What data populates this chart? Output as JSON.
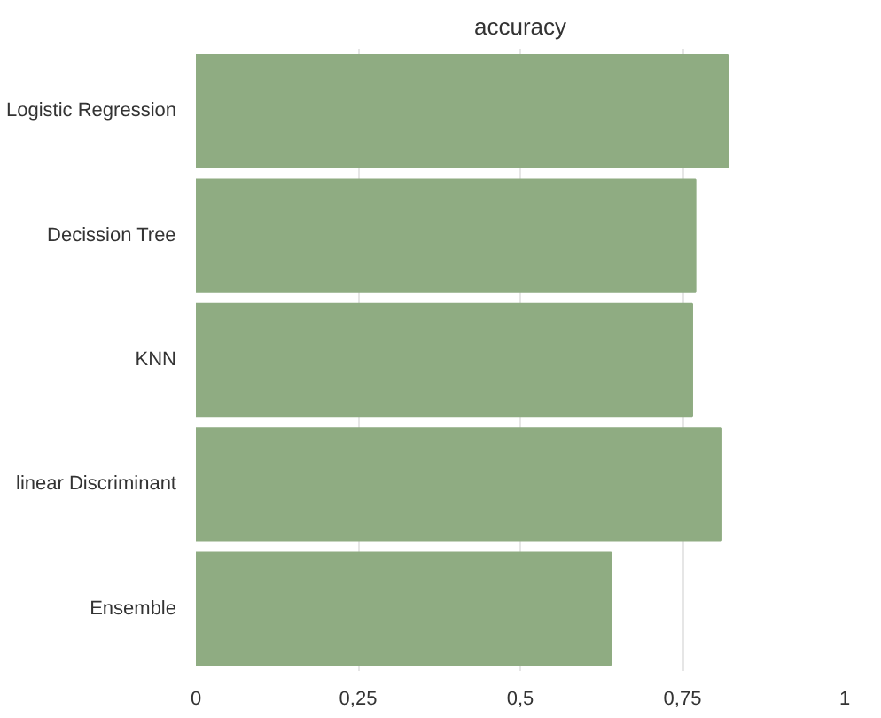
{
  "chart_data": {
    "type": "bar",
    "orientation": "horizontal",
    "title": "accuracy",
    "categories": [
      "Logistic Regression",
      "Decission Tree",
      "KNN",
      "linear Discriminant",
      "Ensemble"
    ],
    "values": [
      0.82,
      0.77,
      0.765,
      0.81,
      0.64
    ],
    "color": "#8fac82",
    "xlim": [
      0,
      1
    ],
    "xticks": [
      0,
      {
        "value": 0.25,
        "label": "0,25"
      },
      {
        "value": 0.5,
        "label": "0,5"
      },
      {
        "value": 0.75,
        "label": "0,75"
      },
      1
    ],
    "grid": "x",
    "legend": false
  }
}
